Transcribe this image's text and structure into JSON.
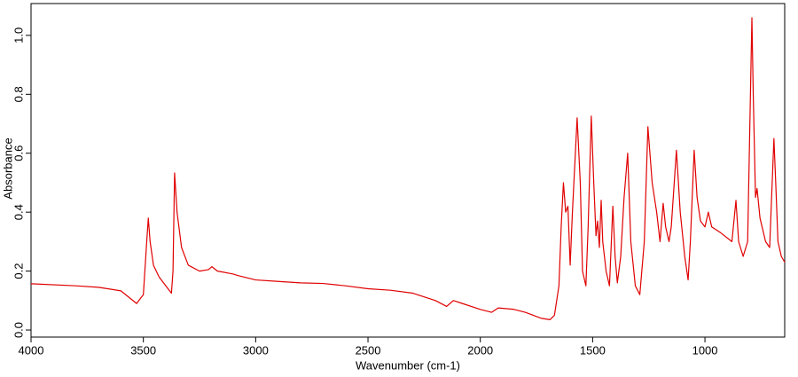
{
  "chart_data": {
    "type": "line",
    "x_label": "Wavenumber (cm-1)",
    "y_label": "Absorbance",
    "xlim": [
      4000,
      645
    ],
    "ylim": [
      -0.024,
      1.108
    ],
    "xticks": [
      4000,
      3500,
      3000,
      2500,
      2000,
      1500,
      1000
    ],
    "yticks": [
      {
        "value": 0,
        "label": "0.0"
      },
      0.2,
      0.4,
      0.6,
      0.8,
      {
        "value": 1,
        "label": "1.0"
      }
    ],
    "x": [
      4000,
      3800,
      3700,
      3600,
      3530,
      3500,
      3485,
      3478,
      3470,
      3455,
      3430,
      3400,
      3375,
      3368,
      3361,
      3350,
      3330,
      3300,
      3250,
      3210,
      3195,
      3170,
      3100,
      3080,
      3000,
      2900,
      2800,
      2700,
      2600,
      2500,
      2400,
      2300,
      2200,
      2150,
      2120,
      2080,
      2000,
      1950,
      1920,
      1850,
      1800,
      1730,
      1690,
      1670,
      1650,
      1640,
      1630,
      1620,
      1610,
      1600,
      1590,
      1569,
      1555,
      1545,
      1530,
      1520,
      1506,
      1495,
      1485,
      1478,
      1470,
      1462,
      1455,
      1440,
      1425,
      1410,
      1400,
      1390,
      1375,
      1360,
      1344,
      1330,
      1310,
      1290,
      1270,
      1254,
      1235,
      1215,
      1200,
      1186,
      1175,
      1160,
      1150,
      1127,
      1110,
      1090,
      1075,
      1065,
      1048,
      1035,
      1020,
      1000,
      985,
      970,
      930,
      880,
      862,
      850,
      830,
      810,
      791,
      785,
      775,
      768,
      755,
      730,
      712,
      693,
      685,
      675,
      660,
      645
    ],
    "values": [
      0.157,
      0.15,
      0.145,
      0.133,
      0.09,
      0.12,
      0.3,
      0.38,
      0.3,
      0.22,
      0.18,
      0.15,
      0.125,
      0.2,
      0.533,
      0.4,
      0.28,
      0.22,
      0.2,
      0.205,
      0.215,
      0.2,
      0.19,
      0.185,
      0.17,
      0.165,
      0.16,
      0.158,
      0.15,
      0.14,
      0.135,
      0.125,
      0.1,
      0.08,
      0.1,
      0.09,
      0.07,
      0.06,
      0.075,
      0.07,
      0.06,
      0.04,
      0.035,
      0.05,
      0.15,
      0.35,
      0.5,
      0.4,
      0.42,
      0.22,
      0.4,
      0.72,
      0.5,
      0.2,
      0.15,
      0.35,
      0.726,
      0.5,
      0.32,
      0.37,
      0.28,
      0.44,
      0.3,
      0.2,
      0.15,
      0.42,
      0.25,
      0.16,
      0.25,
      0.45,
      0.6,
      0.3,
      0.15,
      0.12,
      0.3,
      0.69,
      0.5,
      0.4,
      0.3,
      0.43,
      0.35,
      0.3,
      0.35,
      0.61,
      0.4,
      0.25,
      0.17,
      0.3,
      0.61,
      0.45,
      0.37,
      0.35,
      0.4,
      0.35,
      0.33,
      0.3,
      0.44,
      0.3,
      0.25,
      0.3,
      1.06,
      0.8,
      0.45,
      0.48,
      0.38,
      0.3,
      0.28,
      0.65,
      0.5,
      0.3,
      0.25,
      0.23
    ],
    "color": "#e00000"
  }
}
